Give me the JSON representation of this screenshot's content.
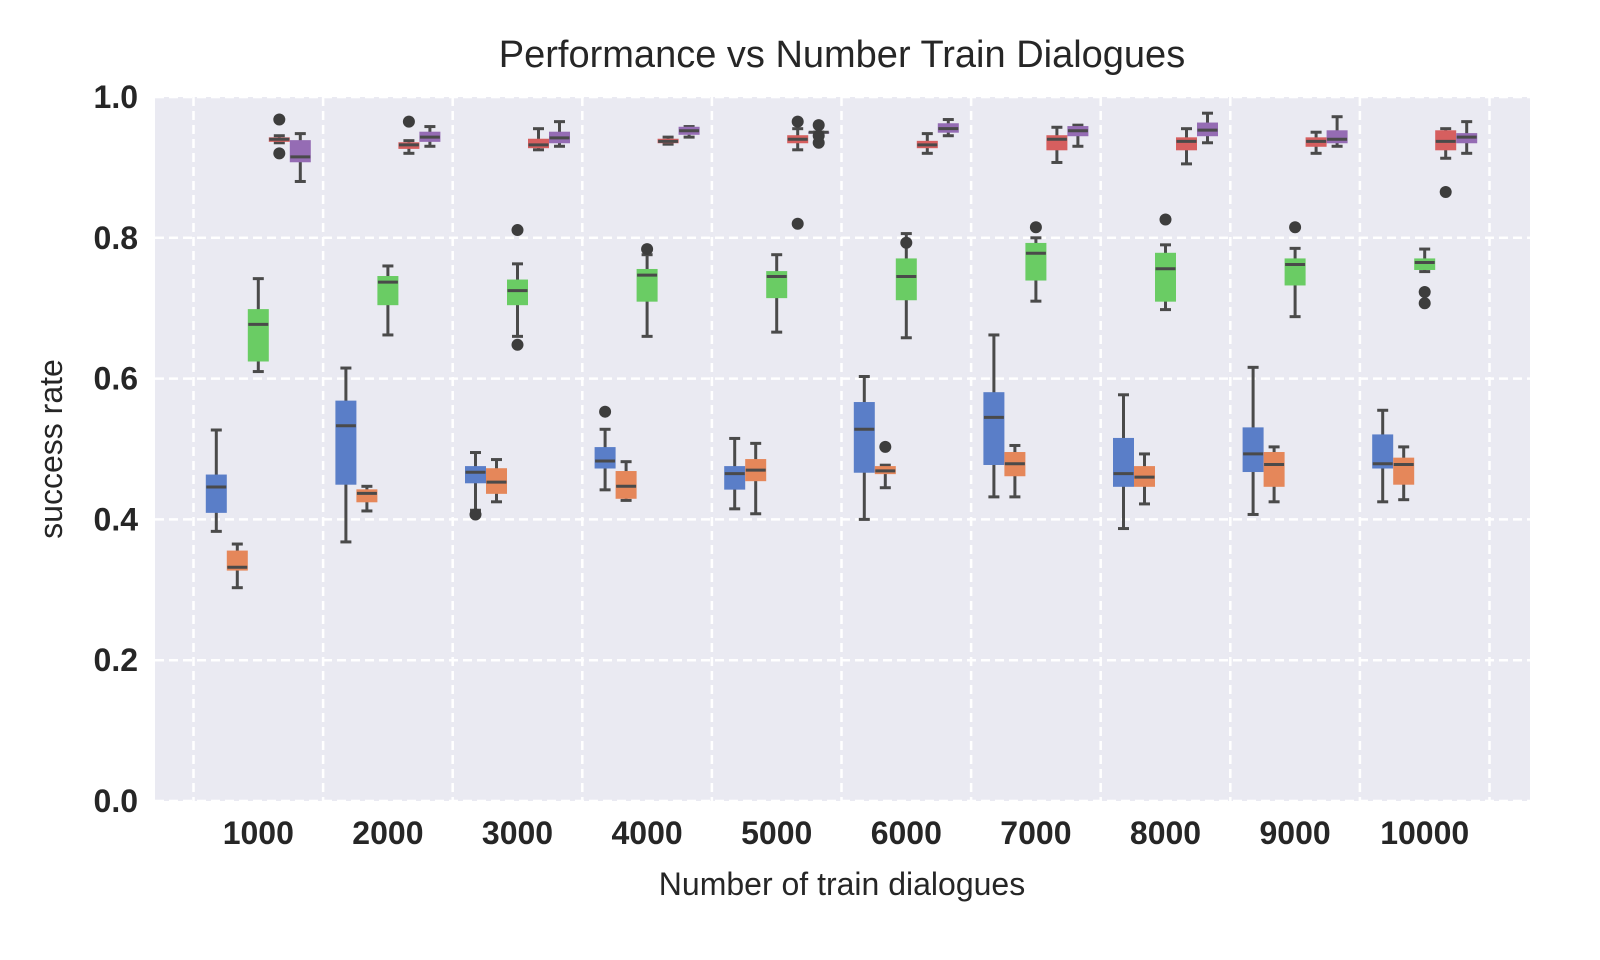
{
  "chart_data": {
    "type": "box",
    "title": "Performance vs Number Train Dialogues",
    "xlabel": "Number of train dialogues",
    "ylabel": "success rate",
    "ylim": [
      0.0,
      1.0
    ],
    "yticks": [
      "0.0",
      "0.2",
      "0.4",
      "0.6",
      "0.8",
      "1.0"
    ],
    "categories": [
      "1000",
      "2000",
      "3000",
      "4000",
      "5000",
      "6000",
      "7000",
      "8000",
      "9000",
      "10000"
    ],
    "grid": "dashed horizontal and vertical",
    "colors": [
      "#4c72b0",
      "#dd8452",
      "#55a868",
      "#c44e52",
      "#8172b2"
    ],
    "palette": [
      "#5a7ec8",
      "#e5875a",
      "#6acc64",
      "#d65f5f",
      "#956cb4"
    ],
    "series": [
      {
        "boxes": [
          {
            "whislo": 0.383,
            "q1": 0.41,
            "med": 0.446,
            "q3": 0.463,
            "whishi": 0.527,
            "fliers": []
          },
          {
            "whislo": 0.368,
            "q1": 0.45,
            "med": 0.533,
            "q3": 0.568,
            "whishi": 0.615,
            "fliers": []
          },
          {
            "whislo": 0.413,
            "q1": 0.452,
            "med": 0.467,
            "q3": 0.475,
            "whishi": 0.495,
            "fliers": [
              0.407
            ]
          },
          {
            "whislo": 0.442,
            "q1": 0.473,
            "med": 0.483,
            "q3": 0.502,
            "whishi": 0.528,
            "fliers": [
              0.553
            ]
          },
          {
            "whislo": 0.415,
            "q1": 0.443,
            "med": 0.465,
            "q3": 0.475,
            "whishi": 0.515,
            "fliers": []
          },
          {
            "whislo": 0.4,
            "q1": 0.467,
            "med": 0.528,
            "q3": 0.566,
            "whishi": 0.603,
            "fliers": []
          },
          {
            "whislo": 0.432,
            "q1": 0.478,
            "med": 0.545,
            "q3": 0.58,
            "whishi": 0.662,
            "fliers": []
          },
          {
            "whislo": 0.387,
            "q1": 0.447,
            "med": 0.465,
            "q3": 0.515,
            "whishi": 0.577,
            "fliers": []
          },
          {
            "whislo": 0.407,
            "q1": 0.468,
            "med": 0.493,
            "q3": 0.53,
            "whishi": 0.616,
            "fliers": []
          },
          {
            "whislo": 0.425,
            "q1": 0.473,
            "med": 0.479,
            "q3": 0.52,
            "whishi": 0.555,
            "fliers": []
          }
        ]
      },
      {
        "boxes": [
          {
            "whislo": 0.303,
            "q1": 0.328,
            "med": 0.332,
            "q3": 0.355,
            "whishi": 0.365,
            "fliers": []
          },
          {
            "whislo": 0.412,
            "q1": 0.425,
            "med": 0.437,
            "q3": 0.442,
            "whishi": 0.447,
            "fliers": []
          },
          {
            "whislo": 0.425,
            "q1": 0.437,
            "med": 0.453,
            "q3": 0.472,
            "whishi": 0.485,
            "fliers": []
          },
          {
            "whislo": 0.427,
            "q1": 0.43,
            "med": 0.447,
            "q3": 0.468,
            "whishi": 0.482,
            "fliers": []
          },
          {
            "whislo": 0.408,
            "q1": 0.455,
            "med": 0.47,
            "q3": 0.485,
            "whishi": 0.508,
            "fliers": []
          },
          {
            "whislo": 0.445,
            "q1": 0.465,
            "med": 0.469,
            "q3": 0.475,
            "whishi": 0.477,
            "fliers": [
              0.503
            ]
          },
          {
            "whislo": 0.432,
            "q1": 0.462,
            "med": 0.479,
            "q3": 0.495,
            "whishi": 0.505,
            "fliers": []
          },
          {
            "whislo": 0.422,
            "q1": 0.447,
            "med": 0.46,
            "q3": 0.475,
            "whishi": 0.493,
            "fliers": []
          },
          {
            "whislo": 0.425,
            "q1": 0.447,
            "med": 0.478,
            "q3": 0.495,
            "whishi": 0.503,
            "fliers": []
          },
          {
            "whislo": 0.428,
            "q1": 0.45,
            "med": 0.478,
            "q3": 0.487,
            "whishi": 0.503,
            "fliers": []
          }
        ]
      },
      {
        "boxes": [
          {
            "whislo": 0.61,
            "q1": 0.625,
            "med": 0.677,
            "q3": 0.698,
            "whishi": 0.742,
            "fliers": []
          },
          {
            "whislo": 0.662,
            "q1": 0.705,
            "med": 0.737,
            "q3": 0.745,
            "whishi": 0.76,
            "fliers": []
          },
          {
            "whislo": 0.66,
            "q1": 0.705,
            "med": 0.725,
            "q3": 0.74,
            "whishi": 0.763,
            "fliers": [
              0.648,
              0.811
            ]
          },
          {
            "whislo": 0.66,
            "q1": 0.71,
            "med": 0.747,
            "q3": 0.755,
            "whishi": 0.776,
            "fliers": [
              0.784
            ]
          },
          {
            "whislo": 0.666,
            "q1": 0.715,
            "med": 0.745,
            "q3": 0.752,
            "whishi": 0.776,
            "fliers": []
          },
          {
            "whislo": 0.658,
            "q1": 0.712,
            "med": 0.745,
            "q3": 0.77,
            "whishi": 0.806,
            "fliers": [
              0.793
            ]
          },
          {
            "whislo": 0.71,
            "q1": 0.74,
            "med": 0.778,
            "q3": 0.792,
            "whishi": 0.8,
            "fliers": [
              0.815
            ]
          },
          {
            "whislo": 0.698,
            "q1": 0.71,
            "med": 0.756,
            "q3": 0.778,
            "whishi": 0.79,
            "fliers": [
              0.826
            ]
          },
          {
            "whislo": 0.688,
            "q1": 0.733,
            "med": 0.762,
            "q3": 0.77,
            "whishi": 0.785,
            "fliers": [
              0.815
            ]
          },
          {
            "whislo": 0.752,
            "q1": 0.755,
            "med": 0.765,
            "q3": 0.77,
            "whishi": 0.784,
            "fliers": [
              0.723,
              0.707
            ]
          }
        ]
      },
      {
        "boxes": [
          {
            "whislo": 0.935,
            "q1": 0.937,
            "med": 0.94,
            "q3": 0.942,
            "whishi": 0.945,
            "fliers": [
              0.968,
              0.92
            ]
          },
          {
            "whislo": 0.92,
            "q1": 0.927,
            "med": 0.932,
            "q3": 0.935,
            "whishi": 0.938,
            "fliers": [
              0.965
            ]
          },
          {
            "whislo": 0.925,
            "q1": 0.928,
            "med": 0.932,
            "q3": 0.94,
            "whishi": 0.955,
            "fliers": []
          },
          {
            "whislo": 0.933,
            "q1": 0.935,
            "med": 0.937,
            "q3": 0.94,
            "whishi": 0.943,
            "fliers": []
          },
          {
            "whislo": 0.925,
            "q1": 0.935,
            "med": 0.94,
            "q3": 0.945,
            "whishi": 0.955,
            "fliers": [
              0.965,
              0.82
            ]
          },
          {
            "whislo": 0.92,
            "q1": 0.928,
            "med": 0.932,
            "q3": 0.937,
            "whishi": 0.948,
            "fliers": []
          },
          {
            "whislo": 0.907,
            "q1": 0.925,
            "med": 0.94,
            "q3": 0.945,
            "whishi": 0.957,
            "fliers": []
          },
          {
            "whislo": 0.905,
            "q1": 0.925,
            "med": 0.937,
            "q3": 0.942,
            "whishi": 0.955,
            "fliers": []
          },
          {
            "whislo": 0.92,
            "q1": 0.93,
            "med": 0.937,
            "q3": 0.942,
            "whishi": 0.95,
            "fliers": []
          },
          {
            "whislo": 0.913,
            "q1": 0.925,
            "med": 0.937,
            "q3": 0.952,
            "whishi": 0.955,
            "fliers": [
              0.865
            ]
          }
        ]
      },
      {
        "boxes": [
          {
            "whislo": 0.88,
            "q1": 0.908,
            "med": 0.915,
            "q3": 0.938,
            "whishi": 0.948,
            "fliers": []
          },
          {
            "whislo": 0.93,
            "q1": 0.937,
            "med": 0.943,
            "q3": 0.95,
            "whishi": 0.958,
            "fliers": []
          },
          {
            "whislo": 0.93,
            "q1": 0.935,
            "med": 0.942,
            "q3": 0.95,
            "whishi": 0.965,
            "fliers": []
          },
          {
            "whislo": 0.943,
            "q1": 0.947,
            "med": 0.952,
            "q3": 0.957,
            "whishi": 0.958,
            "fliers": []
          },
          {
            "whislo": 0.95,
            "q1": 0.95,
            "med": 0.95,
            "q3": 0.95,
            "whishi": 0.95,
            "fliers": [
              0.96,
              0.935,
              0.945
            ]
          },
          {
            "whislo": 0.945,
            "q1": 0.95,
            "med": 0.955,
            "q3": 0.962,
            "whishi": 0.968,
            "fliers": []
          },
          {
            "whislo": 0.93,
            "q1": 0.945,
            "med": 0.952,
            "q3": 0.958,
            "whishi": 0.96,
            "fliers": []
          },
          {
            "whislo": 0.935,
            "q1": 0.945,
            "med": 0.953,
            "q3": 0.963,
            "whishi": 0.977,
            "fliers": []
          },
          {
            "whislo": 0.93,
            "q1": 0.935,
            "med": 0.94,
            "q3": 0.952,
            "whishi": 0.972,
            "fliers": []
          },
          {
            "whislo": 0.92,
            "q1": 0.935,
            "med": 0.943,
            "q3": 0.948,
            "whishi": 0.965,
            "fliers": []
          }
        ]
      }
    ]
  }
}
